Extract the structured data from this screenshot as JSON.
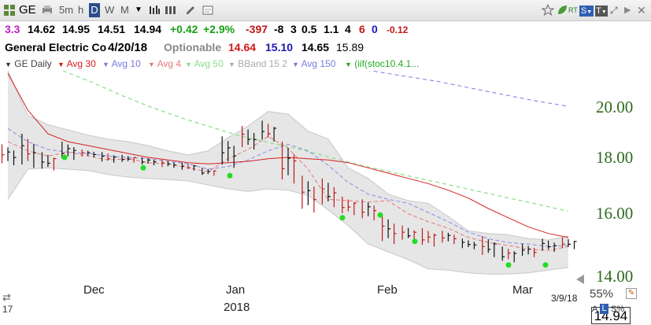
{
  "toolbar": {
    "symbol": "GE",
    "timeframes": [
      "5m",
      "h",
      "D",
      "W",
      "M"
    ],
    "active_timeframe": "D",
    "rt_label": "RT",
    "s_badge": "S",
    "t_badge": "T"
  },
  "quote": {
    "rating": "3.3",
    "open": "14.62",
    "high": "14.95",
    "low": "14.51",
    "close": "14.94",
    "change": "+0.42",
    "change_pct": "+2.9%",
    "v1": "-397",
    "v2": "-8",
    "v3": "3",
    "v4": "0.5",
    "v5": "1.1",
    "v6": "4",
    "v7": "6",
    "v8": "0",
    "v9": "-0.12"
  },
  "info": {
    "company": "General Electric Co",
    "date": "4/20/18",
    "optionable": "Optionable",
    "p1": "14.64",
    "p2": "15.10",
    "p3": "14.65",
    "p4": "15.89"
  },
  "legend": {
    "items": [
      "GE Daily",
      "Avg 30",
      "Avg 10",
      "Avg 4",
      "Avg 50",
      "BBand 15 2",
      "Avg 150",
      "(iif(stoc10.4.1..."
    ],
    "colors": [
      "#444444",
      "#d62020",
      "#7a7ae0",
      "#e87878",
      "#88dd88",
      "#aaaaaa",
      "#7a7ae0",
      "#22aa22"
    ]
  },
  "chart_data": {
    "type": "line",
    "ylim": [
      13.5,
      21.3
    ],
    "yticks": [
      "20.00",
      "18.00",
      "16.00",
      "14.00"
    ],
    "xlabels": [
      "Dec",
      "Jan",
      "Feb",
      "Mar"
    ],
    "year_label": "2018",
    "last_price": "14.94",
    "date_label": "3/9/18",
    "zoom_label": "55%",
    "bottom_left_label": "17",
    "scale_labels": [
      "A",
      "L",
      "S%"
    ],
    "series": [
      {
        "name": "Avg 30",
        "values": [
          21.2,
          19.8,
          18.9,
          18.6,
          18.45,
          18.3,
          18.15,
          18.0,
          17.9,
          17.8,
          17.75,
          17.8,
          17.85,
          17.95,
          18.0,
          17.95,
          17.9,
          17.8,
          17.6,
          17.4,
          17.2,
          17.0,
          16.75,
          16.45,
          16.05,
          15.7,
          15.35,
          15.1,
          14.95
        ]
      },
      {
        "name": "Avg 10",
        "values": [
          19.1,
          18.6,
          18.3,
          18.2,
          18.15,
          18.05,
          18.0,
          17.95,
          17.85,
          17.75,
          17.55,
          17.65,
          17.9,
          18.25,
          18.5,
          18.25,
          17.7,
          17.05,
          16.6,
          16.4,
          16.25,
          15.9,
          15.55,
          15.15,
          14.9,
          14.75,
          14.7,
          14.6,
          14.65
        ]
      },
      {
        "name": "Avg 4",
        "values": [
          18.6,
          18.25,
          18.05,
          18.2,
          18.05,
          17.9,
          17.95,
          17.8,
          17.75,
          17.6,
          17.45,
          17.95,
          18.3,
          18.8,
          18.35,
          17.55,
          16.4,
          16.35,
          16.3,
          16.35,
          15.85,
          15.55,
          15.3,
          14.95,
          14.75,
          14.65,
          14.5,
          14.45,
          14.6
        ]
      },
      {
        "name": "Avg 50",
        "values": [
          21.3,
          20.85,
          20.35,
          19.9,
          19.5,
          19.15,
          18.8,
          18.55,
          18.3,
          18.0,
          17.7,
          17.45,
          17.2,
          16.95,
          16.7,
          16.45,
          16.2,
          15.95
        ]
      },
      {
        "name": "Avg 150",
        "values": [
          21.4,
          21.3,
          21.1,
          20.9,
          20.65,
          20.4,
          20.15,
          19.95
        ]
      },
      {
        "name": "BBand upper",
        "values": [
          21.3,
          19.6,
          19.25,
          19.05,
          18.85,
          18.7,
          18.6,
          18.45,
          18.25,
          18.1,
          18.25,
          18.75,
          19.2,
          19.75,
          19.65,
          19.0,
          18.7,
          17.6,
          17.2,
          16.6,
          16.35,
          16.25,
          15.75,
          15.2,
          15.1,
          15.05,
          14.9,
          14.85,
          15.0
        ]
      },
      {
        "name": "BBand lower",
        "values": [
          16.4,
          17.55,
          17.6,
          17.55,
          17.5,
          17.35,
          17.25,
          17.2,
          17.15,
          17.1,
          16.95,
          16.8,
          16.7,
          16.8,
          16.75,
          16.55,
          16.0,
          15.4,
          14.7,
          14.4,
          14.1,
          13.75,
          13.7,
          13.6,
          13.55,
          13.55,
          13.6,
          13.7,
          13.8
        ]
      },
      {
        "name": "signal",
        "values": [
          18.0,
          17.6,
          17.3,
          15.7,
          15.8,
          14.8,
          13.9,
          13.9
        ]
      },
      {
        "name": "bars",
        "values": [
          [
            18.5,
            17.7
          ],
          [
            18.9,
            17.6
          ],
          [
            18.2,
            17.5
          ],
          [
            18.6,
            17.9
          ],
          [
            18.3,
            18.0
          ],
          [
            18.2,
            17.8
          ],
          [
            18.1,
            17.8
          ],
          [
            18.0,
            17.7
          ],
          [
            17.9,
            17.6
          ],
          [
            17.8,
            17.5
          ],
          [
            17.6,
            17.3
          ],
          [
            18.8,
            17.6
          ],
          [
            19.2,
            18.3
          ],
          [
            19.4,
            18.6
          ],
          [
            18.6,
            17.0
          ],
          [
            17.3,
            15.9
          ],
          [
            17.2,
            16.1
          ],
          [
            16.5,
            15.8
          ],
          [
            16.4,
            15.6
          ],
          [
            15.8,
            14.7
          ],
          [
            15.4,
            14.8
          ],
          [
            15.3,
            14.6
          ],
          [
            15.2,
            14.7
          ],
          [
            14.9,
            14.5
          ],
          [
            15.0,
            14.2
          ],
          [
            14.6,
            14.0
          ],
          [
            14.7,
            14.2
          ],
          [
            14.9,
            14.4
          ],
          [
            14.95,
            14.5
          ]
        ]
      }
    ]
  }
}
